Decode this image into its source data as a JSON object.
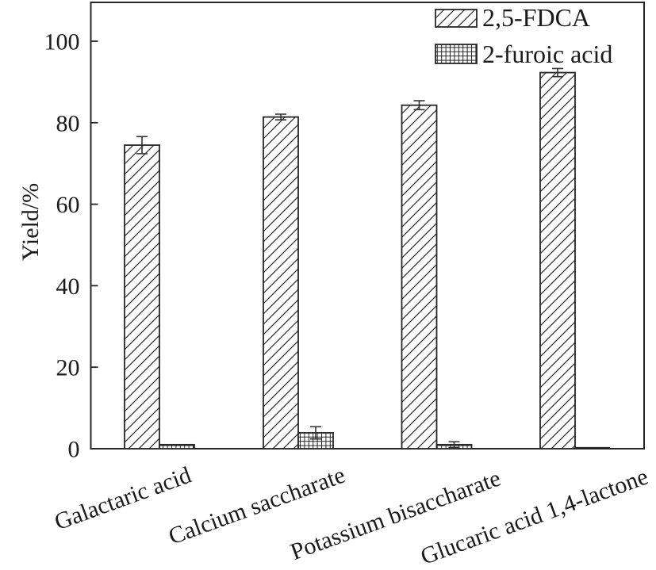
{
  "chart_data": {
    "type": "bar",
    "title": "",
    "xlabel": "",
    "ylabel": "Yield/%",
    "categories": [
      "Galactaric acid",
      "Calcium saccharate",
      "Potassium bisaccharate",
      "Glucaric acid 1,4-lactone"
    ],
    "series": [
      {
        "name": "2,5-FDCA",
        "hatch": "diagonal",
        "values": [
          74.5,
          81.4,
          84.3,
          92.3
        ],
        "errors": [
          2.1,
          0.7,
          1.1,
          1.0
        ]
      },
      {
        "name": "2-furoic acid",
        "hatch": "grid",
        "values": [
          1.0,
          3.9,
          1.0,
          0
        ],
        "errors": [
          0,
          1.5,
          0.7,
          0
        ]
      }
    ],
    "ylim": [
      0,
      110
    ],
    "yticks": [
      0,
      20,
      40,
      60,
      80,
      100
    ],
    "grid": false,
    "legend_position": "upper right",
    "bar_fill": "#ffffff",
    "line_color": "#262626",
    "error_bar_color": "#333333"
  }
}
